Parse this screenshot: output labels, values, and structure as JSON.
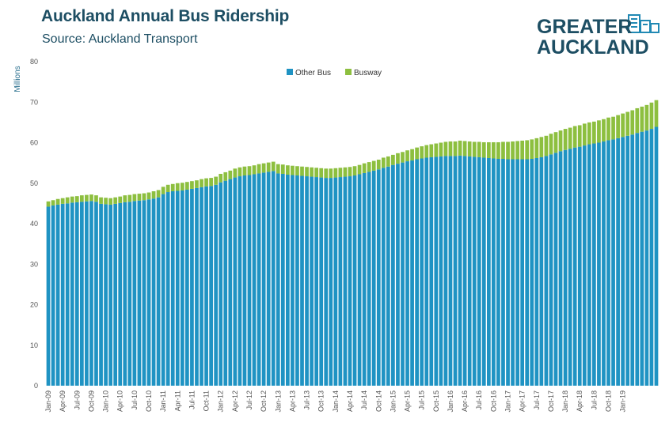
{
  "title": "Auckland Annual Bus Ridership",
  "subtitle": "Source: Auckland Transport",
  "logo": {
    "line1": "GREATER",
    "line2": "AUCKLAND"
  },
  "colors": {
    "other_bus": "#1f93c3",
    "busway": "#8dbf3f",
    "title": "#1d4e63"
  },
  "chart_data": {
    "type": "bar",
    "stacked": true,
    "ylabel": "Millions",
    "xlabel": "",
    "ylim": [
      0,
      80
    ],
    "yticks": [
      0,
      10,
      20,
      30,
      40,
      50,
      60,
      70,
      80
    ],
    "legend_position": "top-center",
    "grid": false,
    "x_start": "Jan-09",
    "x_tick_labels": [
      "Jan-09",
      "Apr-09",
      "Jul-09",
      "Oct-09",
      "Jan-10",
      "Apr-10",
      "Jul-10",
      "Oct-10",
      "Jan-11",
      "Apr-11",
      "Jul-11",
      "Oct-11",
      "Jan-12",
      "Apr-12",
      "Jul-12",
      "Oct-12",
      "Jan-13",
      "Apr-13",
      "Jul-13",
      "Oct-13",
      "Jan-14",
      "Apr-14",
      "Jul-14",
      "Oct-14",
      "Jan-15",
      "Apr-15",
      "Jul-15",
      "Oct-15",
      "Jan-16",
      "Apr-16",
      "Jul-16",
      "Oct-16",
      "Jan-17",
      "Apr-17",
      "Jul-17",
      "Oct-17",
      "Jan-18",
      "Apr-18",
      "Jul-18",
      "Oct-18",
      "Jan-19"
    ],
    "series": [
      {
        "name": "Other Bus",
        "values": [
          44.2,
          44.5,
          44.7,
          44.9,
          45.0,
          45.2,
          45.3,
          45.4,
          45.5,
          45.6,
          45.4,
          44.9,
          44.8,
          44.7,
          44.9,
          45.1,
          45.3,
          45.4,
          45.6,
          45.7,
          45.8,
          46.0,
          46.2,
          46.5,
          47.3,
          47.8,
          48.0,
          48.1,
          48.2,
          48.4,
          48.6,
          48.8,
          49.0,
          49.2,
          49.3,
          49.6,
          50.2,
          50.6,
          51.0,
          51.4,
          51.7,
          51.9,
          52.0,
          52.2,
          52.4,
          52.6,
          52.8,
          53.0,
          52.4,
          52.3,
          52.1,
          52.0,
          51.9,
          51.8,
          51.7,
          51.6,
          51.5,
          51.4,
          51.3,
          51.3,
          51.4,
          51.5,
          51.6,
          51.7,
          51.9,
          52.2,
          52.5,
          52.8,
          53.1,
          53.4,
          53.8,
          54.1,
          54.5,
          54.8,
          55.1,
          55.4,
          55.6,
          55.9,
          56.1,
          56.3,
          56.4,
          56.5,
          56.6,
          56.7,
          56.7,
          56.7,
          56.8,
          56.7,
          56.6,
          56.5,
          56.4,
          56.3,
          56.2,
          56.1,
          56.0,
          56.0,
          55.9,
          55.9,
          55.9,
          55.9,
          55.9,
          56.0,
          56.2,
          56.4,
          56.7,
          57.1,
          57.5,
          57.9,
          58.2,
          58.5,
          58.8,
          59.0,
          59.3,
          59.6,
          59.8,
          60.0,
          60.3,
          60.6,
          60.8,
          61.1,
          61.4,
          61.7,
          62.0,
          62.4,
          62.7,
          63.0,
          63.4,
          63.9
        ]
      },
      {
        "name": "Busway",
        "values": [
          1.3,
          1.3,
          1.4,
          1.4,
          1.5,
          1.5,
          1.5,
          1.6,
          1.6,
          1.6,
          1.6,
          1.6,
          1.6,
          1.6,
          1.6,
          1.6,
          1.7,
          1.7,
          1.7,
          1.7,
          1.7,
          1.7,
          1.8,
          1.8,
          1.8,
          1.8,
          1.8,
          1.9,
          1.9,
          1.9,
          1.9,
          1.9,
          2.0,
          2.0,
          2.0,
          2.0,
          2.1,
          2.1,
          2.1,
          2.2,
          2.2,
          2.2,
          2.2,
          2.2,
          2.3,
          2.3,
          2.3,
          2.3,
          2.3,
          2.3,
          2.3,
          2.3,
          2.3,
          2.3,
          2.3,
          2.3,
          2.3,
          2.3,
          2.3,
          2.3,
          2.3,
          2.3,
          2.3,
          2.3,
          2.3,
          2.3,
          2.4,
          2.4,
          2.4,
          2.4,
          2.5,
          2.5,
          2.5,
          2.6,
          2.6,
          2.7,
          2.8,
          2.9,
          3.0,
          3.1,
          3.2,
          3.3,
          3.4,
          3.5,
          3.6,
          3.6,
          3.7,
          3.7,
          3.7,
          3.7,
          3.8,
          3.8,
          3.9,
          4.0,
          4.1,
          4.2,
          4.3,
          4.4,
          4.5,
          4.6,
          4.7,
          4.8,
          4.9,
          5.0,
          5.0,
          5.1,
          5.1,
          5.1,
          5.2,
          5.2,
          5.3,
          5.3,
          5.4,
          5.4,
          5.4,
          5.5,
          5.5,
          5.6,
          5.6,
          5.7,
          5.8,
          5.9,
          6.0,
          6.1,
          6.2,
          6.3,
          6.5,
          6.6
        ]
      }
    ]
  }
}
